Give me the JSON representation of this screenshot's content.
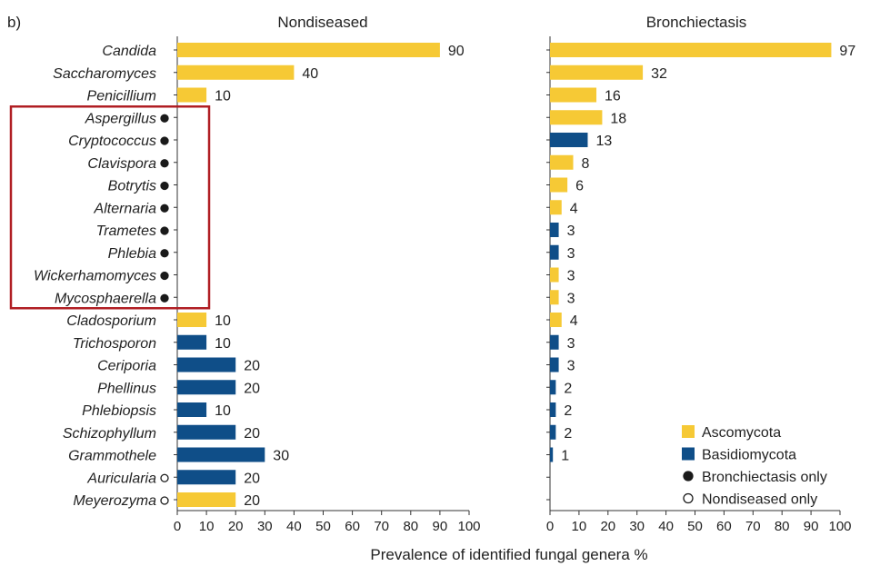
{
  "chart_data": {
    "type": "bar",
    "panel_label": "b)",
    "orientation": "horizontal",
    "xlabel": "Prevalence of identified fungal genera %",
    "xlim": [
      0,
      100
    ],
    "xticks": [
      0,
      10,
      20,
      30,
      40,
      50,
      60,
      70,
      80,
      90,
      100
    ],
    "panels": [
      {
        "title": "Nondiseased"
      },
      {
        "title": "Bronchiectasis"
      }
    ],
    "genera": [
      {
        "name": "Candida",
        "phylum": "Ascomycota",
        "marker": "",
        "nondiseased": 90,
        "bronchiectasis": 97
      },
      {
        "name": "Saccharomyces",
        "phylum": "Ascomycota",
        "marker": "",
        "nondiseased": 40,
        "bronchiectasis": 32
      },
      {
        "name": "Penicillium",
        "phylum": "Ascomycota",
        "marker": "",
        "nondiseased": 10,
        "bronchiectasis": 16
      },
      {
        "name": "Aspergillus",
        "phylum": "Ascomycota",
        "marker": "bronchiectasis_only",
        "nondiseased": null,
        "bronchiectasis": 18
      },
      {
        "name": "Cryptococcus",
        "phylum": "Basidiomycota",
        "marker": "bronchiectasis_only",
        "nondiseased": null,
        "bronchiectasis": 13
      },
      {
        "name": "Clavispora",
        "phylum": "Ascomycota",
        "marker": "bronchiectasis_only",
        "nondiseased": null,
        "bronchiectasis": 8
      },
      {
        "name": "Botrytis",
        "phylum": "Ascomycota",
        "marker": "bronchiectasis_only",
        "nondiseased": null,
        "bronchiectasis": 6
      },
      {
        "name": "Alternaria",
        "phylum": "Ascomycota",
        "marker": "bronchiectasis_only",
        "nondiseased": null,
        "bronchiectasis": 4
      },
      {
        "name": "Trametes",
        "phylum": "Basidiomycota",
        "marker": "bronchiectasis_only",
        "nondiseased": null,
        "bronchiectasis": 3
      },
      {
        "name": "Phlebia",
        "phylum": "Basidiomycota",
        "marker": "bronchiectasis_only",
        "nondiseased": null,
        "bronchiectasis": 3
      },
      {
        "name": "Wickerhamomyces",
        "phylum": "Ascomycota",
        "marker": "bronchiectasis_only",
        "nondiseased": null,
        "bronchiectasis": 3
      },
      {
        "name": "Mycosphaerella",
        "phylum": "Ascomycota",
        "marker": "bronchiectasis_only",
        "nondiseased": null,
        "bronchiectasis": 3
      },
      {
        "name": "Cladosporium",
        "phylum": "Ascomycota",
        "marker": "",
        "nondiseased": 10,
        "bronchiectasis": 4
      },
      {
        "name": "Trichosporon",
        "phylum": "Basidiomycota",
        "marker": "",
        "nondiseased": 10,
        "bronchiectasis": 3
      },
      {
        "name": "Ceriporia",
        "phylum": "Basidiomycota",
        "marker": "",
        "nondiseased": 20,
        "bronchiectasis": 3
      },
      {
        "name": "Phellinus",
        "phylum": "Basidiomycota",
        "marker": "",
        "nondiseased": 20,
        "bronchiectasis": 2
      },
      {
        "name": "Phlebiopsis",
        "phylum": "Basidiomycota",
        "marker": "",
        "nondiseased": 10,
        "bronchiectasis": 2
      },
      {
        "name": "Schizophyllum",
        "phylum": "Basidiomycota",
        "marker": "",
        "nondiseased": 20,
        "bronchiectasis": 2
      },
      {
        "name": "Grammothele",
        "phylum": "Basidiomycota",
        "marker": "",
        "nondiseased": 30,
        "bronchiectasis": 1
      },
      {
        "name": "Auricularia",
        "phylum": "Basidiomycota",
        "marker": "nondiseased_only",
        "nondiseased": 20,
        "bronchiectasis": null
      },
      {
        "name": "Meyerozyma",
        "phylum": "Ascomycota",
        "marker": "nondiseased_only",
        "nondiseased": 20,
        "bronchiectasis": null
      }
    ],
    "legend": {
      "placement": "bottom-right",
      "items": [
        {
          "label": "Ascomycota",
          "symbol": "square",
          "color": "#f6c935"
        },
        {
          "label": "Basidiomycota",
          "symbol": "square",
          "color": "#0f4e88"
        },
        {
          "label": "Bronchiectasis only",
          "symbol": "filled-circle",
          "color": "#1a1a1a"
        },
        {
          "label": "Nondiseased only",
          "symbol": "open-circle",
          "color": "#1a1a1a"
        }
      ]
    },
    "colors": {
      "Ascomycota": "#f6c935",
      "Basidiomycota": "#0f4e88",
      "highlight_box": "#b01e23",
      "axis": "#333333"
    },
    "highlight": {
      "description_rows": [
        "Aspergillus",
        "Mycosphaerella"
      ]
    }
  }
}
